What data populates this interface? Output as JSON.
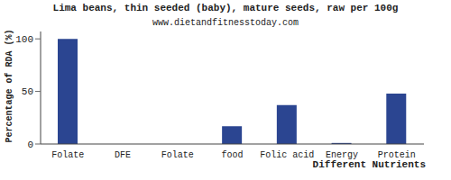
{
  "chart_data": {
    "type": "bar",
    "title": "Lima beans, thin seeded (baby), mature seeds, raw per 100g",
    "subtitle": "www.dietandfitnesstoday.com",
    "x_label": "Different Nutrients",
    "y_label": "Percentage of RDA (%)",
    "categories": [
      "Folate",
      "DFE",
      "Folate",
      "food",
      "Folic acid",
      "Energy",
      "Protein"
    ],
    "values": [
      100,
      0,
      0,
      17,
      37,
      1,
      48
    ],
    "color": "#2b4591",
    "ylim": [
      0,
      107
    ],
    "yticks": [
      0,
      50,
      100
    ],
    "grid": false
  }
}
